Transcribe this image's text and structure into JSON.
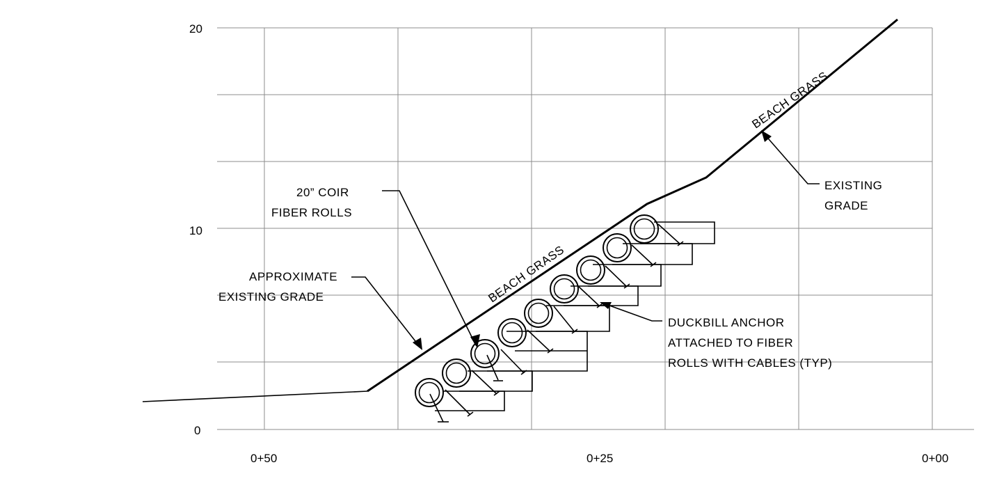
{
  "y_ticks": [
    "20",
    "10",
    "0"
  ],
  "x_ticks": [
    "0+50",
    "0+25",
    "0+00"
  ],
  "labels": {
    "coir_line1": "20” COIR",
    "coir_line2": "FIBER ROLLS",
    "approx_line1": "APPROXIMATE",
    "approx_line2": "EXISTING GRADE",
    "existing_line1": "EXISTING",
    "existing_line2": "GRADE",
    "duckbill_line1": "DUCKBILL ANCHOR",
    "duckbill_line2": "ATTACHED TO FIBER",
    "duckbill_line3": "ROLLS WITH CABLES (TYP)",
    "beach_grass_lower": "BEACH GRASS",
    "beach_grass_upper": "BEACH GRASS"
  }
}
